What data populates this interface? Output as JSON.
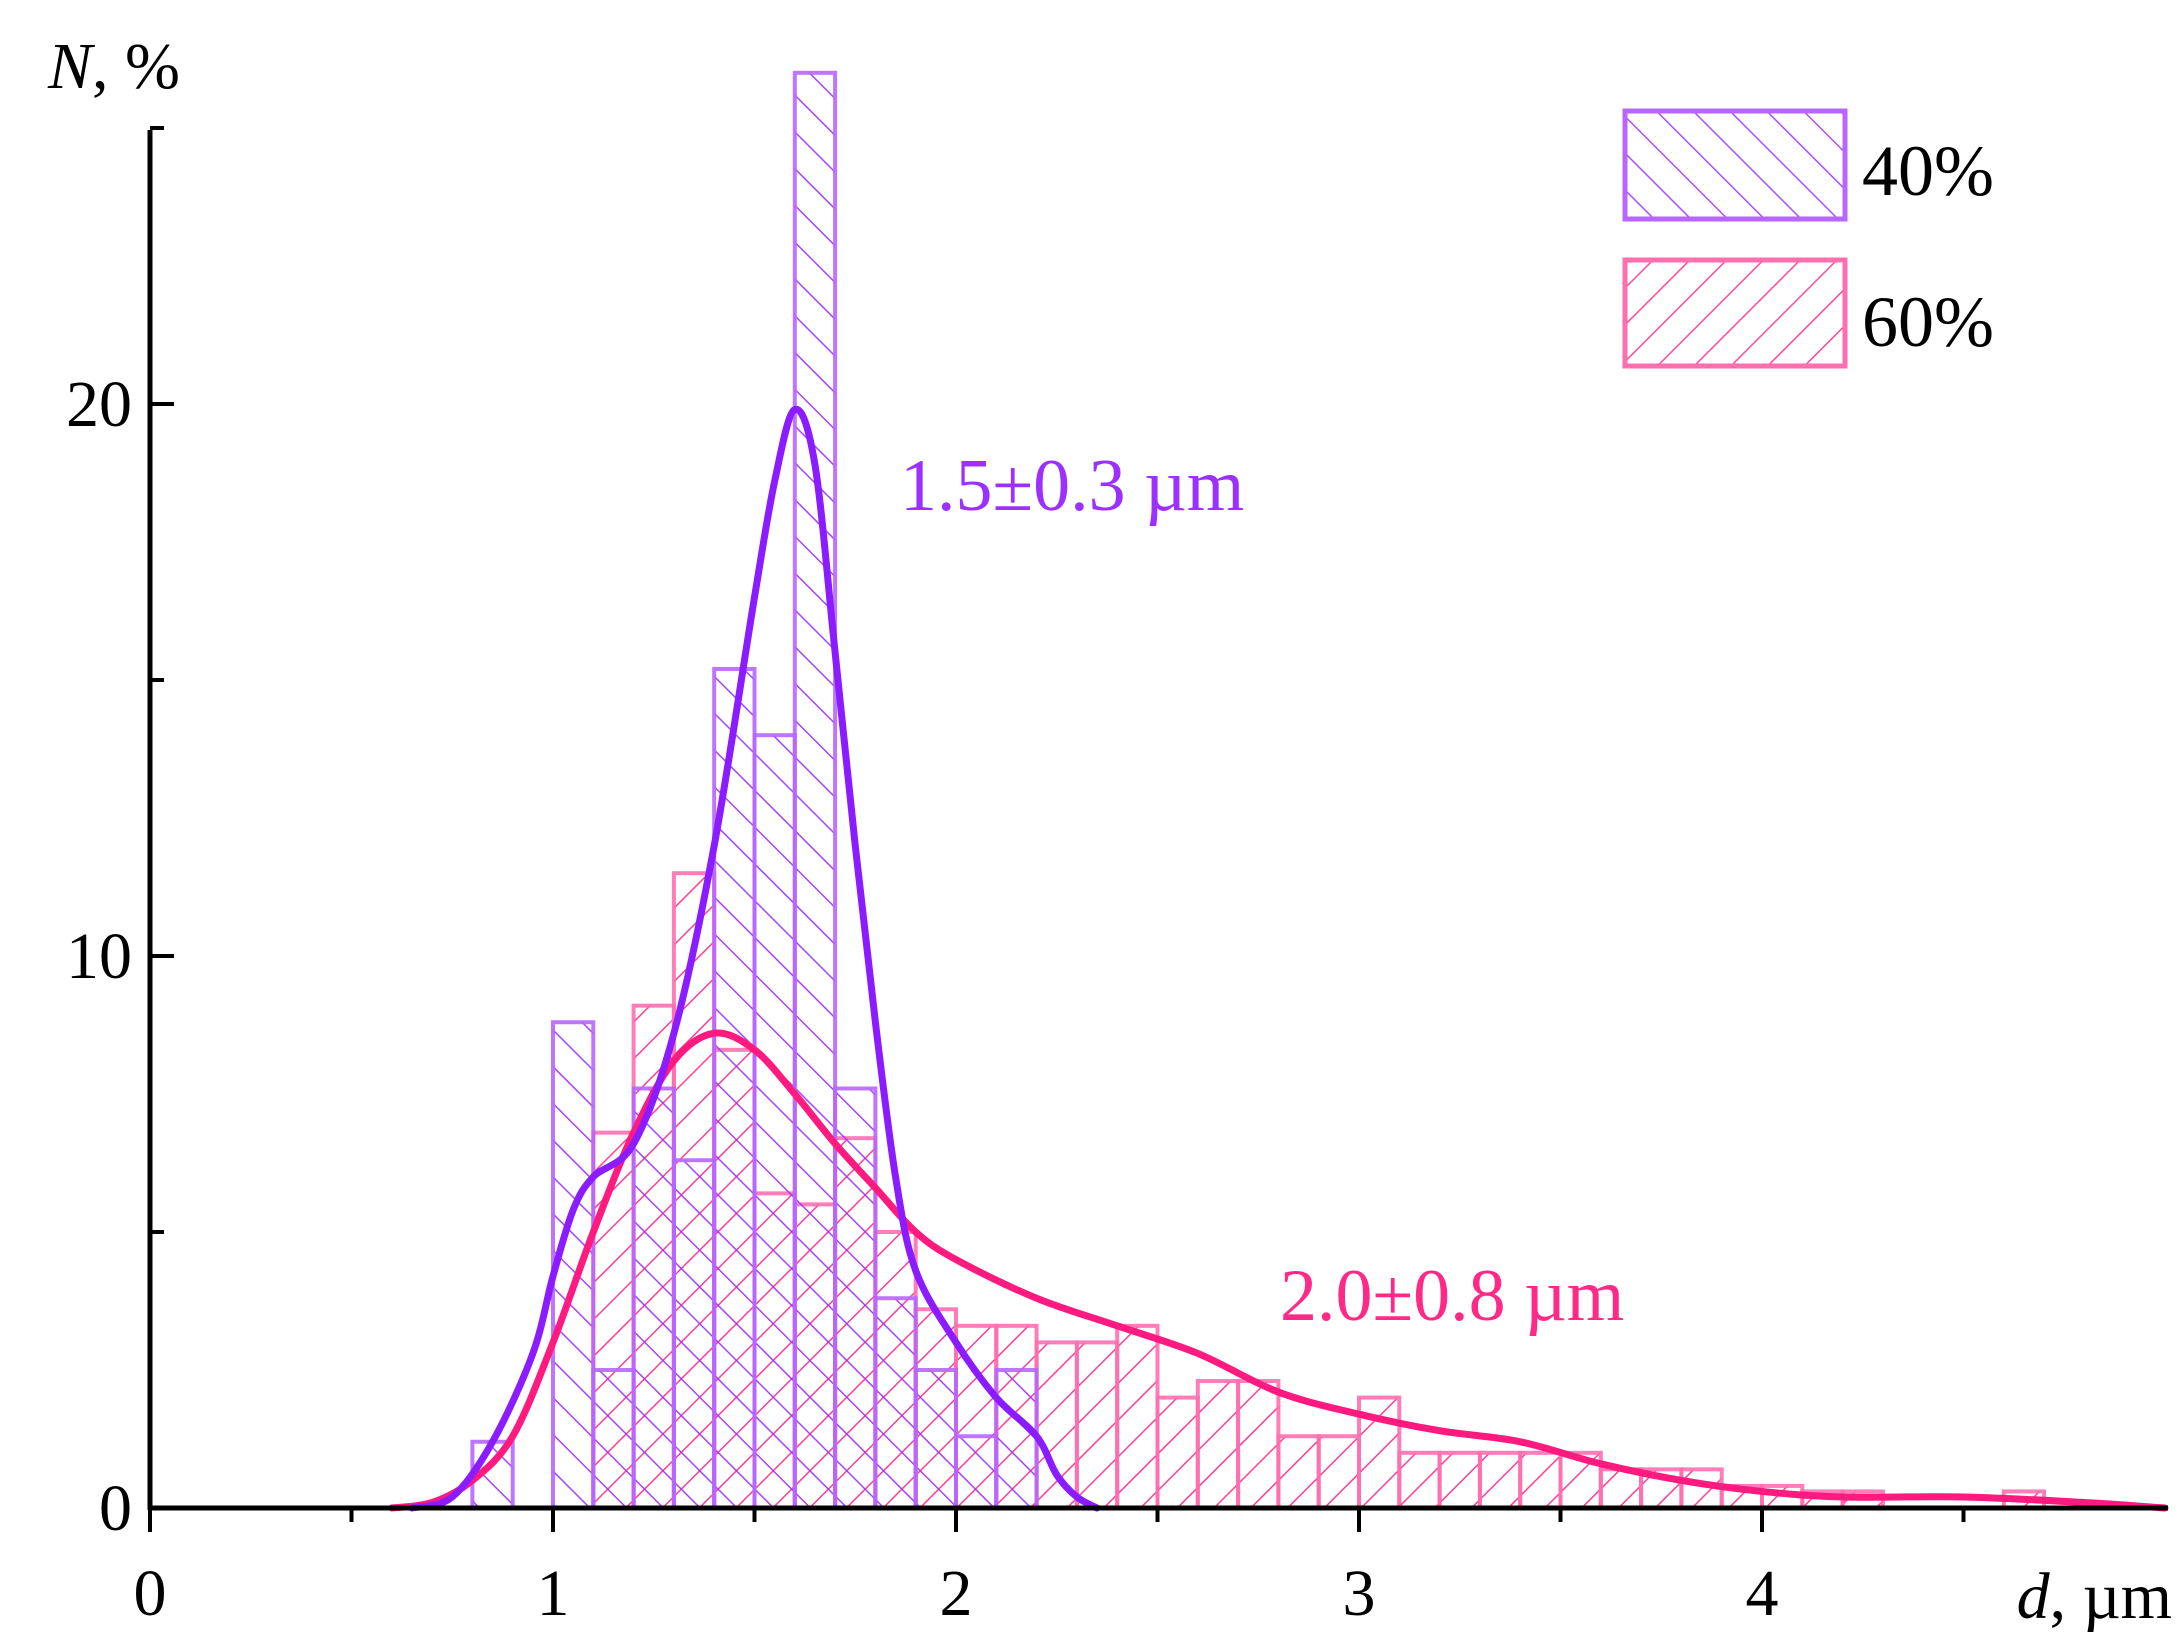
{
  "chart_data": {
    "type": "bar",
    "x_label_var": "d",
    "x_label_unit": ", µm",
    "y_label_var": "N",
    "y_label_unit": ", %",
    "xlim": [
      0,
      5
    ],
    "ylim": [
      0,
      26
    ],
    "x_ticks": [
      "0",
      "1",
      "2",
      "3",
      "4"
    ],
    "y_ticks": [
      "0",
      "10",
      "20"
    ],
    "bin_width": 0.1,
    "legend_position": "top-right",
    "series": [
      {
        "name": "40%",
        "color": "#9b30ff",
        "hatch": "backslash",
        "bins": [
          {
            "x": 0.85,
            "v": 1.2
          },
          {
            "x": 1.05,
            "v": 8.8
          },
          {
            "x": 1.15,
            "v": 2.5
          },
          {
            "x": 1.25,
            "v": 7.6
          },
          {
            "x": 1.35,
            "v": 6.3
          },
          {
            "x": 1.45,
            "v": 15.2
          },
          {
            "x": 1.55,
            "v": 14.0
          },
          {
            "x": 1.65,
            "v": 26.0
          },
          {
            "x": 1.75,
            "v": 7.6
          },
          {
            "x": 1.85,
            "v": 3.8
          },
          {
            "x": 1.95,
            "v": 2.5
          },
          {
            "x": 2.05,
            "v": 1.3
          },
          {
            "x": 2.15,
            "v": 2.5
          }
        ],
        "fit": {
          "label": "1.5±0.3 µm",
          "points": [
            [
              0.65,
              0.0
            ],
            [
              0.75,
              0.2
            ],
            [
              0.85,
              1.2
            ],
            [
              0.95,
              2.8
            ],
            [
              1.0,
              4.2
            ],
            [
              1.05,
              5.4
            ],
            [
              1.1,
              6.0
            ],
            [
              1.2,
              6.6
            ],
            [
              1.3,
              8.6
            ],
            [
              1.4,
              12.0
            ],
            [
              1.5,
              16.5
            ],
            [
              1.55,
              18.6
            ],
            [
              1.6,
              19.9
            ],
            [
              1.65,
              18.9
            ],
            [
              1.7,
              15.5
            ],
            [
              1.75,
              12.0
            ],
            [
              1.8,
              8.8
            ],
            [
              1.85,
              6.0
            ],
            [
              1.9,
              4.3
            ],
            [
              2.0,
              3.0
            ],
            [
              2.1,
              2.0
            ],
            [
              2.2,
              1.3
            ],
            [
              2.25,
              0.6
            ],
            [
              2.3,
              0.2
            ],
            [
              2.35,
              0.0
            ]
          ]
        }
      },
      {
        "name": "60%",
        "color": "#ff2a88",
        "hatch": "slash",
        "bins": [
          {
            "x": 1.15,
            "v": 6.8
          },
          {
            "x": 1.25,
            "v": 9.1
          },
          {
            "x": 1.35,
            "v": 11.5
          },
          {
            "x": 1.45,
            "v": 8.3
          },
          {
            "x": 1.55,
            "v": 5.7
          },
          {
            "x": 1.65,
            "v": 5.5
          },
          {
            "x": 1.75,
            "v": 6.7
          },
          {
            "x": 1.85,
            "v": 5.0
          },
          {
            "x": 1.95,
            "v": 3.6
          },
          {
            "x": 2.05,
            "v": 3.3
          },
          {
            "x": 2.15,
            "v": 3.3
          },
          {
            "x": 2.25,
            "v": 3.0
          },
          {
            "x": 2.35,
            "v": 3.0
          },
          {
            "x": 2.45,
            "v": 3.3
          },
          {
            "x": 2.55,
            "v": 2.0
          },
          {
            "x": 2.65,
            "v": 2.3
          },
          {
            "x": 2.75,
            "v": 2.3
          },
          {
            "x": 2.85,
            "v": 1.3
          },
          {
            "x": 2.95,
            "v": 1.3
          },
          {
            "x": 3.05,
            "v": 2.0
          },
          {
            "x": 3.15,
            "v": 1.0
          },
          {
            "x": 3.25,
            "v": 1.0
          },
          {
            "x": 3.35,
            "v": 1.0
          },
          {
            "x": 3.45,
            "v": 1.0
          },
          {
            "x": 3.55,
            "v": 1.0
          },
          {
            "x": 3.65,
            "v": 0.7
          },
          {
            "x": 3.75,
            "v": 0.7
          },
          {
            "x": 3.85,
            "v": 0.7
          },
          {
            "x": 3.95,
            "v": 0.4
          },
          {
            "x": 4.05,
            "v": 0.4
          },
          {
            "x": 4.15,
            "v": 0.3
          },
          {
            "x": 4.25,
            "v": 0.3
          },
          {
            "x": 4.65,
            "v": 0.3
          }
        ],
        "fit": {
          "label": "2.0±0.8 µm",
          "points": [
            [
              0.6,
              0.0
            ],
            [
              0.7,
              0.1
            ],
            [
              0.8,
              0.5
            ],
            [
              0.9,
              1.3
            ],
            [
              1.0,
              3.0
            ],
            [
              1.1,
              5.0
            ],
            [
              1.2,
              6.8
            ],
            [
              1.3,
              8.1
            ],
            [
              1.4,
              8.6
            ],
            [
              1.5,
              8.3
            ],
            [
              1.6,
              7.5
            ],
            [
              1.7,
              6.6
            ],
            [
              1.8,
              5.8
            ],
            [
              1.9,
              5.0
            ],
            [
              2.0,
              4.5
            ],
            [
              2.2,
              3.8
            ],
            [
              2.4,
              3.3
            ],
            [
              2.6,
              2.8
            ],
            [
              2.8,
              2.1
            ],
            [
              3.0,
              1.7
            ],
            [
              3.2,
              1.4
            ],
            [
              3.4,
              1.2
            ],
            [
              3.6,
              0.8
            ],
            [
              3.8,
              0.5
            ],
            [
              4.0,
              0.3
            ],
            [
              4.2,
              0.2
            ],
            [
              4.5,
              0.2
            ],
            [
              4.8,
              0.1
            ],
            [
              5.0,
              0.0
            ]
          ]
        }
      }
    ]
  }
}
